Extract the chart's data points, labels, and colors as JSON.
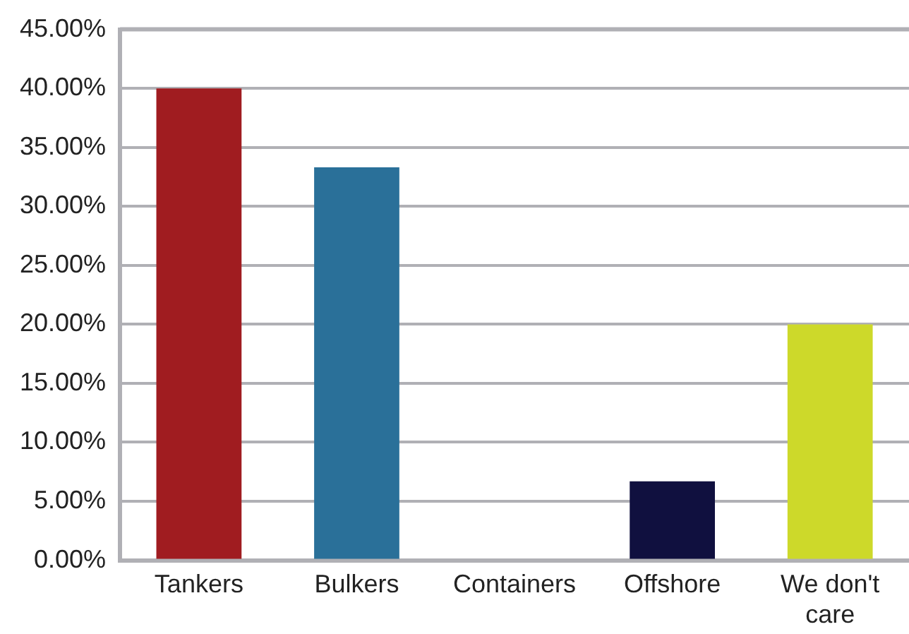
{
  "chart_data": {
    "type": "bar",
    "categories": [
      "Tankers",
      "Bulkers",
      "Containers",
      "Offshore",
      "We don't care"
    ],
    "values": [
      40,
      33.3,
      0,
      6.7,
      20
    ],
    "colors": [
      "#a01c20",
      "#2a7099",
      "#2a7099",
      "#10103f",
      "#cdd92a"
    ],
    "ylim": [
      0,
      45
    ],
    "yticks": [
      {
        "value": 0,
        "label": "0.00%"
      },
      {
        "value": 5,
        "label": "5.00%"
      },
      {
        "value": 10,
        "label": "10.00%"
      },
      {
        "value": 15,
        "label": "15.00%"
      },
      {
        "value": 20,
        "label": "20.00%"
      },
      {
        "value": 25,
        "label": "25.00%"
      },
      {
        "value": 30,
        "label": "30.00%"
      },
      {
        "value": 35,
        "label": "35.00%"
      },
      {
        "value": 40,
        "label": "40.00%"
      },
      {
        "value": 45,
        "label": "45.00%"
      }
    ],
    "grid": "y",
    "legend": false
  }
}
